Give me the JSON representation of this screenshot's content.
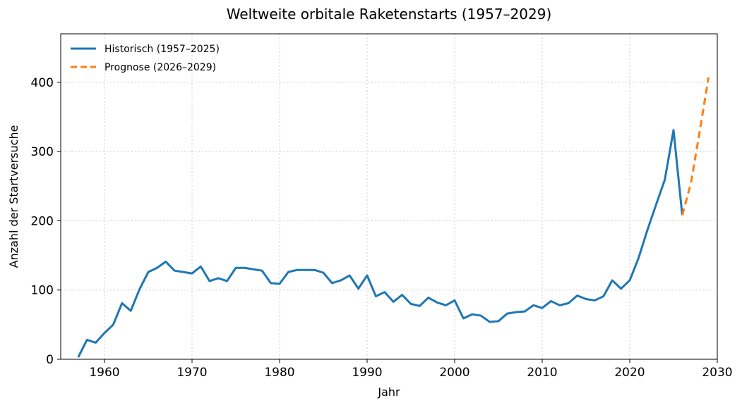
{
  "chart_data": {
    "type": "line",
    "title": "Weltweite orbitale Raketenstarts (1957–2029)",
    "xlabel": "Jahr",
    "ylabel": "Anzahl der Startversuche",
    "xlim": [
      1955,
      2030
    ],
    "ylim": [
      0,
      470
    ],
    "xticks": [
      1960,
      1970,
      1980,
      1990,
      2000,
      2010,
      2020,
      2030
    ],
    "yticks": [
      0,
      100,
      200,
      300,
      400
    ],
    "grid": true,
    "legend_position": "top-left",
    "series": [
      {
        "name": "Historisch (1957–2025)",
        "color": "#1f77b4",
        "style": "solid",
        "x": [
          1957,
          1958,
          1959,
          1960,
          1961,
          1962,
          1963,
          1964,
          1965,
          1966,
          1967,
          1968,
          1969,
          1970,
          1971,
          1972,
          1973,
          1974,
          1975,
          1976,
          1977,
          1978,
          1979,
          1980,
          1981,
          1982,
          1983,
          1984,
          1985,
          1986,
          1987,
          1988,
          1989,
          1990,
          1991,
          1992,
          1993,
          1994,
          1995,
          1996,
          1997,
          1998,
          1999,
          2000,
          2001,
          2002,
          2003,
          2004,
          2005,
          2006,
          2007,
          2008,
          2009,
          2010,
          2011,
          2012,
          2013,
          2014,
          2015,
          2016,
          2017,
          2018,
          2019,
          2020,
          2021,
          2022,
          2023,
          2024,
          2025,
          2026
        ],
        "y": [
          3,
          28,
          24,
          38,
          50,
          81,
          70,
          101,
          126,
          132,
          141,
          128,
          126,
          124,
          134,
          113,
          117,
          113,
          132,
          132,
          130,
          128,
          110,
          109,
          126,
          129,
          129,
          129,
          125,
          110,
          114,
          121,
          102,
          121,
          91,
          97,
          83,
          93,
          80,
          77,
          89,
          82,
          78,
          85,
          59,
          65,
          63,
          54,
          55,
          66,
          68,
          69,
          78,
          74,
          84,
          78,
          81,
          92,
          87,
          85,
          91,
          114,
          102,
          114,
          146,
          186,
          223,
          259,
          331,
          208
        ]
      },
      {
        "name": "Prognose (2026–2029)",
        "color": "#ff7f0e",
        "style": "dashed",
        "x": [
          2026,
          2027,
          2028,
          2029
        ],
        "y": [
          208,
          255,
          330,
          407
        ]
      }
    ]
  }
}
